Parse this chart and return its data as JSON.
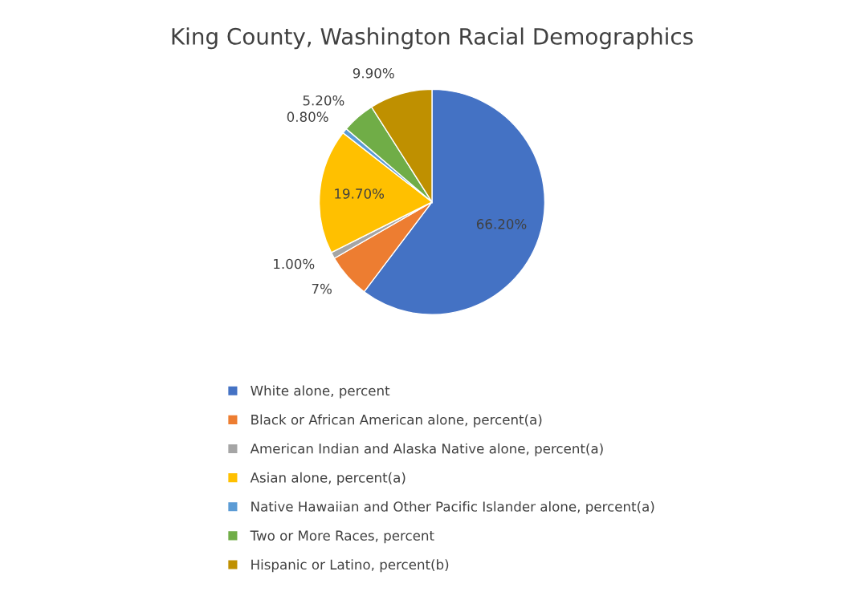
{
  "chart_data": {
    "type": "pie",
    "title": "King County, Washington Racial Demographics",
    "categories": [
      "White alone, percent",
      "Black or African American alone, percent(a)",
      "American Indian and Alaska Native alone, percent(a)",
      "Asian alone, percent(a)",
      "Native Hawaiian and Other Pacific Islander alone, percent(a)",
      "Two or More Races, percent",
      "Hispanic or Latino, percent(b)"
    ],
    "values": [
      66.2,
      7,
      1.0,
      19.7,
      0.8,
      5.2,
      9.9
    ],
    "value_labels": [
      "66.20%",
      "7%",
      "1.00%",
      "19.70%",
      "0.80%",
      "5.20%",
      "9.90%"
    ],
    "colors": [
      "#4472c4",
      "#ed7d31",
      "#a5a5a5",
      "#ffc000",
      "#5b9bd5",
      "#70ad47",
      "#bf9000"
    ],
    "legend": "bottom"
  }
}
